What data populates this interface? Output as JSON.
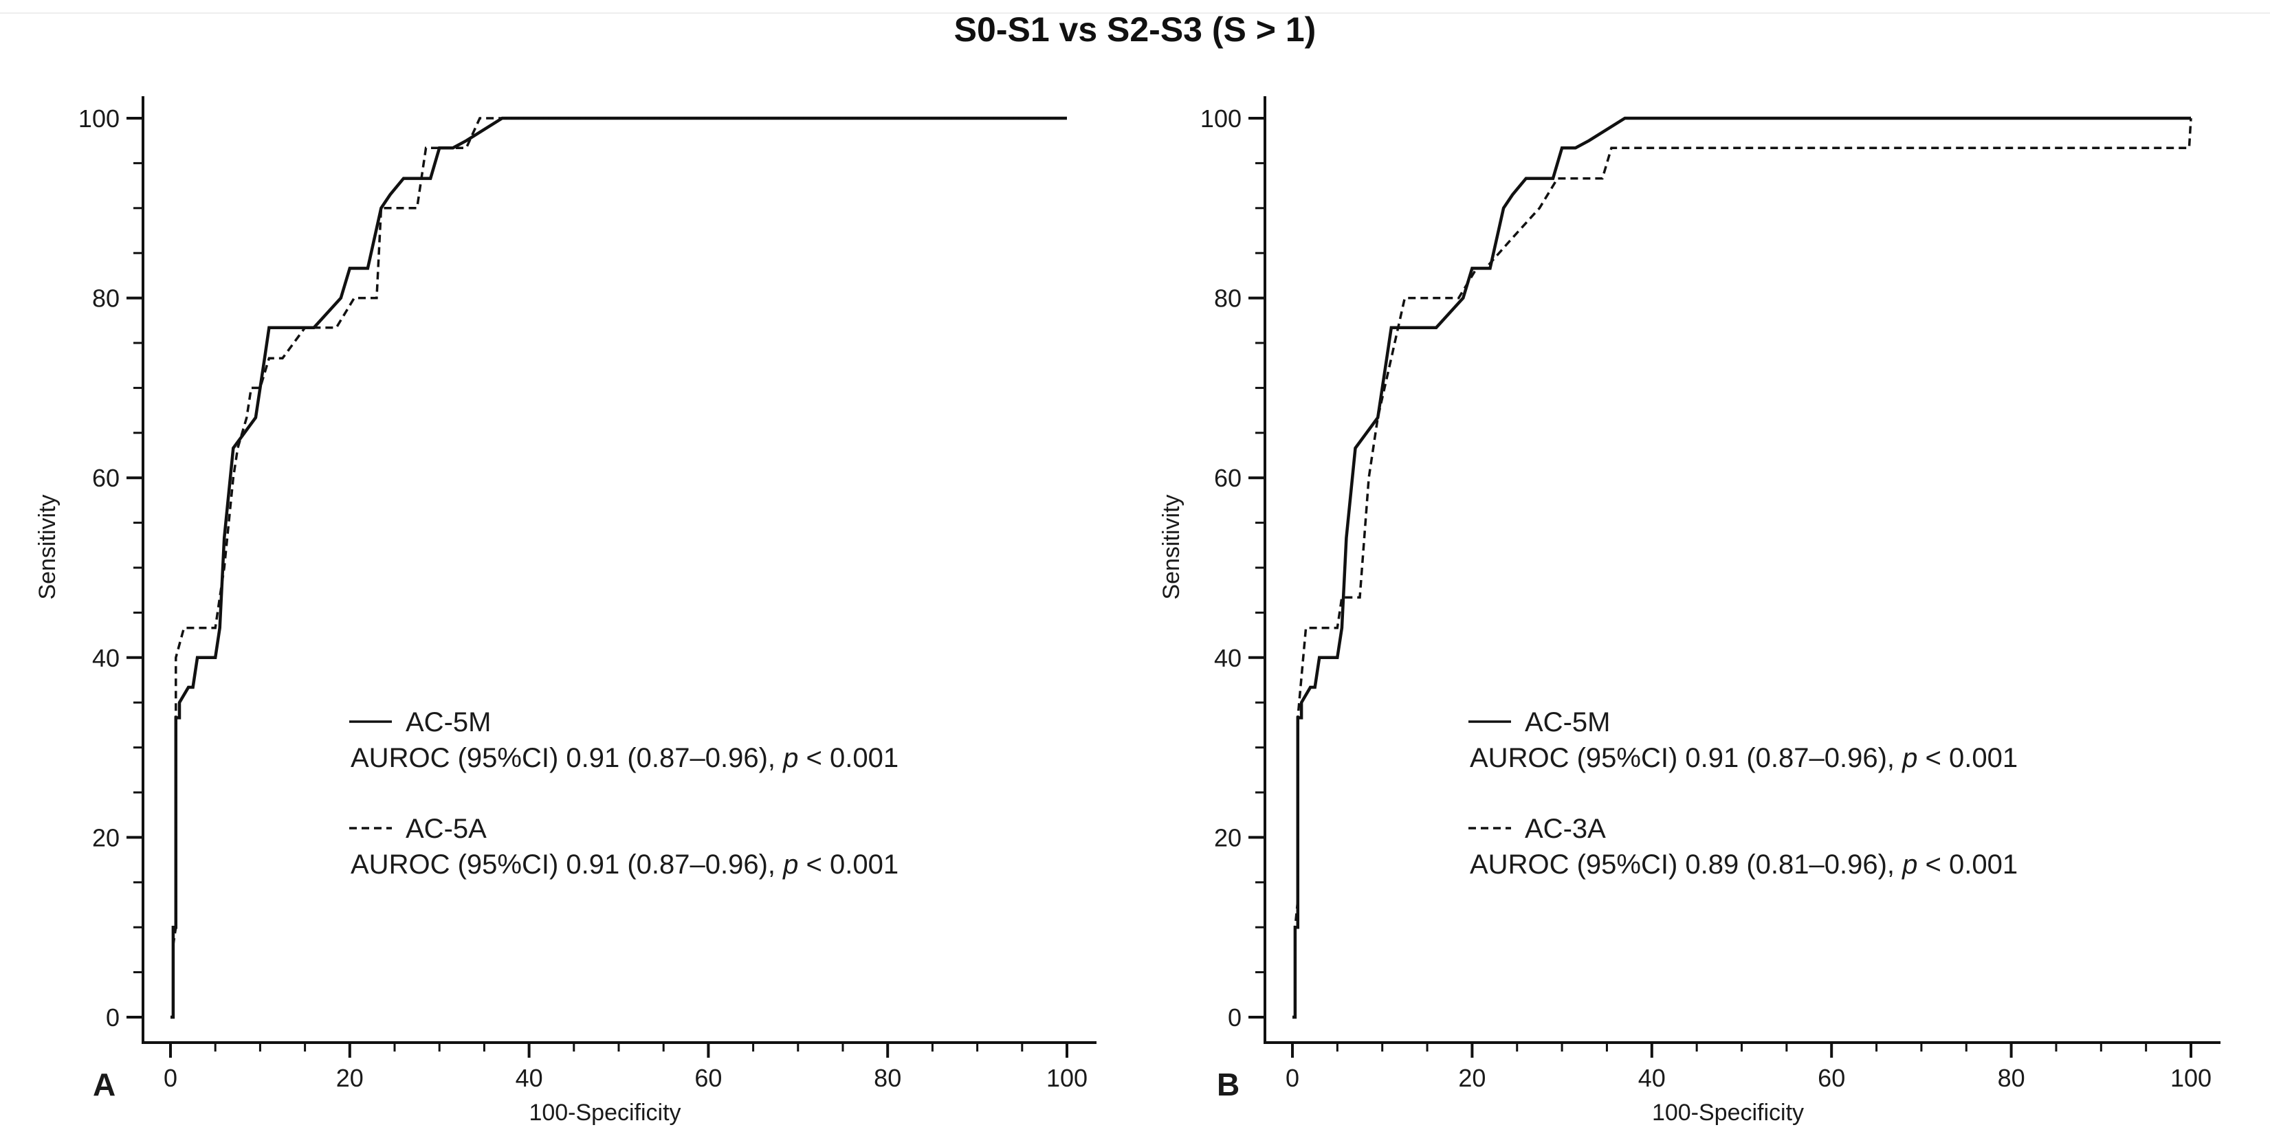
{
  "title": "S0-S1 vs S2-S3 (S > 1)",
  "chart_data": [
    {
      "panel": "A",
      "type": "line",
      "xlabel": "100-Specificity",
      "ylabel": "Sensitivity",
      "xlim": [
        0,
        100
      ],
      "ylim": [
        0,
        100
      ],
      "xticks": [
        0,
        20,
        40,
        60,
        80,
        100
      ],
      "yticks": [
        0,
        20,
        40,
        60,
        80,
        100
      ],
      "grid": false,
      "legend_position": "center-left",
      "series": [
        {
          "name": "AC-5M",
          "style": "solid",
          "stats_prefix": "AUROC (95%CI) 0.91 (0.87–0.96), ",
          "p_symbol": "p",
          "p_text": " < 0.001",
          "x": [
            0,
            0.3,
            0.3,
            0.6,
            0.6,
            1.0,
            1.0,
            2.0,
            2.5,
            3.0,
            3.5,
            4.0,
            5.0,
            5.5,
            6.0,
            7.0,
            9.5,
            10.5,
            11.0,
            16.0,
            19.0,
            20.0,
            22.0,
            23.5,
            24.5,
            26.0,
            27.5,
            29.0,
            30.0,
            31.5,
            33.0,
            37.0,
            100
          ],
          "y": [
            0,
            0,
            10,
            10,
            33.3,
            33.3,
            35,
            36.7,
            36.7,
            40,
            40,
            40,
            40,
            43.3,
            53.3,
            63.3,
            66.7,
            73.3,
            76.7,
            76.7,
            80,
            83.3,
            83.3,
            90,
            91.5,
            93.3,
            93.3,
            93.3,
            96.7,
            96.7,
            97.5,
            100,
            100
          ]
        },
        {
          "name": "AC-5A",
          "style": "dashed",
          "stats_prefix": "AUROC (95%CI) 0.91 (0.87–0.96), ",
          "p_symbol": "p",
          "p_text": " < 0.001",
          "x": [
            0,
            0.3,
            0.3,
            0.6,
            0.6,
            1.5,
            5.0,
            5.5,
            6.0,
            7.0,
            7.5,
            8.5,
            9.0,
            10.0,
            11.0,
            12.5,
            15.0,
            18.5,
            20.5,
            23.0,
            23.5,
            27.5,
            28.5,
            31.5,
            33.0,
            34.5,
            37.0,
            100
          ],
          "y": [
            0,
            0,
            8,
            10,
            40,
            43.3,
            43.3,
            46.7,
            50,
            60,
            63.3,
            66.7,
            70,
            70,
            73.3,
            73.3,
            76.7,
            76.7,
            80,
            80,
            90,
            90,
            96.7,
            96.7,
            96.7,
            100,
            100,
            100
          ]
        }
      ]
    },
    {
      "panel": "B",
      "type": "line",
      "xlabel": "100-Specificity",
      "ylabel": "Sensitivity",
      "xlim": [
        0,
        100
      ],
      "ylim": [
        0,
        100
      ],
      "xticks": [
        0,
        20,
        40,
        60,
        80,
        100
      ],
      "yticks": [
        0,
        20,
        40,
        60,
        80,
        100
      ],
      "grid": false,
      "legend_position": "center-left",
      "series": [
        {
          "name": "AC-5M",
          "style": "solid",
          "stats_prefix": "AUROC (95%CI) 0.91 (0.87–0.96), ",
          "p_symbol": "p",
          "p_text": " < 0.001",
          "x": [
            0,
            0.3,
            0.3,
            0.6,
            0.6,
            1.0,
            1.0,
            2.0,
            2.5,
            3.0,
            3.5,
            4.0,
            5.0,
            5.5,
            6.0,
            7.0,
            9.5,
            10.5,
            11.0,
            16.0,
            19.0,
            20.0,
            22.0,
            23.5,
            24.5,
            26.0,
            27.5,
            29.0,
            30.0,
            31.5,
            33.0,
            37.0,
            100
          ],
          "y": [
            0,
            0,
            10,
            10,
            33.3,
            33.3,
            35,
            36.7,
            36.7,
            40,
            40,
            40,
            40,
            43.3,
            53.3,
            63.3,
            66.7,
            73.3,
            76.7,
            76.7,
            80,
            83.3,
            83.3,
            90,
            91.5,
            93.3,
            93.3,
            93.3,
            96.7,
            96.7,
            97.5,
            100,
            100
          ]
        },
        {
          "name": "AC-3A",
          "style": "dashed",
          "stats_prefix": "AUROC (95%CI) 0.89 (0.81–0.96), ",
          "p_symbol": "p",
          "p_text": " < 0.001",
          "x": [
            0,
            0.3,
            0.3,
            0.6,
            0.6,
            1.5,
            5.0,
            5.5,
            7.5,
            8.5,
            9.5,
            11.0,
            12.5,
            18.5,
            20.5,
            21.5,
            24.5,
            27.5,
            29.5,
            34.5,
            35.5,
            99.8,
            100
          ],
          "y": [
            0,
            0,
            10,
            13,
            33.3,
            43.3,
            43.3,
            46.7,
            46.7,
            60,
            66.7,
            73.3,
            80,
            80,
            83.3,
            83.3,
            86.7,
            90,
            93.3,
            93.3,
            96.7,
            96.7,
            100
          ]
        }
      ]
    }
  ]
}
